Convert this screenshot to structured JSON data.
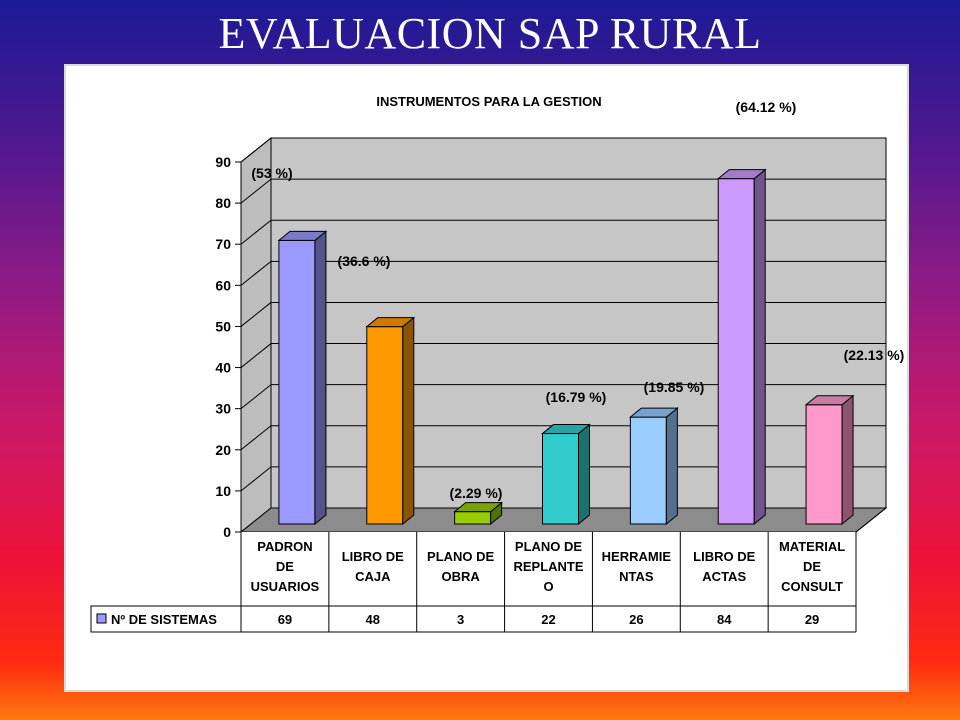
{
  "slide_title": "EVALUACION SAP  RURAL",
  "chart_data": {
    "type": "bar",
    "title": "INSTRUMENTOS PARA LA GESTION",
    "categories": [
      [
        "PADRON",
        "DE",
        "USUARIOS"
      ],
      [
        "LIBRO DE",
        "CAJA"
      ],
      [
        "PLANO DE",
        "OBRA"
      ],
      [
        "PLANO DE",
        "REPLANTE",
        "O"
      ],
      [
        "HERRAMIE",
        "NTAS"
      ],
      [
        "LIBRO DE",
        "ACTAS"
      ],
      [
        "MATERIAL",
        "DE",
        "CONSULT"
      ]
    ],
    "series": [
      {
        "name": "Nº DE SISTEMAS",
        "values": [
          69,
          48,
          3,
          22,
          26,
          84,
          29
        ]
      }
    ],
    "bar_colors": [
      "#9999ff",
      "#ff9900",
      "#99cc00",
      "#33cccc",
      "#99ccff",
      "#cc99ff",
      "#ff99cc"
    ],
    "annotations": [
      "(53 %)",
      "(36.6 %)",
      "(2.29 %)",
      "(16.79 %)",
      "(19.85 %)",
      "(64.12 %)",
      "(22.13 %)"
    ],
    "ylim": [
      0,
      90
    ],
    "yticks": [
      0,
      10,
      20,
      30,
      40,
      50,
      60,
      70,
      80,
      90
    ],
    "grid": true,
    "legend": "data-table"
  }
}
